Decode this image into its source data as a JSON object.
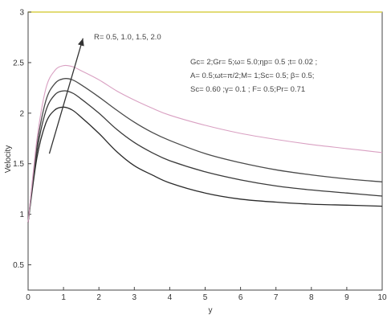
{
  "chart_data": {
    "type": "line",
    "title": "",
    "xlabel": "y",
    "ylabel": "Velocity",
    "xlim": [
      0,
      10
    ],
    "ylim": [
      0.25,
      3
    ],
    "x_ticks": [
      0,
      1,
      2,
      3,
      4,
      5,
      6,
      7,
      8,
      9,
      10
    ],
    "y_ticks": [
      0.5,
      1,
      1.5,
      2,
      2.5,
      3
    ],
    "grid": false,
    "legend": "none",
    "annotations": [
      "R= 0.5, 1.0, 1.5, 2.0",
      "Gc= 2;Gr= 5;ω= 5.0;ηp= 0.5 ;t= 0.02 ;",
      "A= 0.5;ωt=π/2;M= 1;Sc= 0.5; β= 0.5;",
      "Sc= 0.60 ;γ= 0.1 ; F= 0.5;Pr= 0.71"
    ],
    "x": [
      0,
      0.25,
      0.5,
      0.75,
      1,
      1.25,
      1.5,
      2,
      2.5,
      3,
      3.5,
      4,
      5,
      6,
      7,
      8,
      9,
      10
    ],
    "series": [
      {
        "name": "R = 0.5",
        "color": "#2a2a2a",
        "values": [
          0.92,
          1.56,
          1.9,
          2.03,
          2.06,
          2.03,
          1.96,
          1.8,
          1.62,
          1.48,
          1.39,
          1.31,
          1.21,
          1.15,
          1.12,
          1.1,
          1.09,
          1.08
        ]
      },
      {
        "name": "R = 1.0",
        "color": "#3a3a3a",
        "values": [
          0.92,
          1.62,
          2.02,
          2.18,
          2.22,
          2.2,
          2.14,
          2.0,
          1.84,
          1.71,
          1.61,
          1.53,
          1.42,
          1.34,
          1.28,
          1.24,
          1.21,
          1.18
        ]
      },
      {
        "name": "R = 1.5",
        "color": "#4a4a4a",
        "values": [
          0.92,
          1.68,
          2.12,
          2.29,
          2.34,
          2.33,
          2.28,
          2.16,
          2.03,
          1.91,
          1.81,
          1.73,
          1.6,
          1.51,
          1.44,
          1.39,
          1.35,
          1.32
        ]
      },
      {
        "name": "R = 2.0",
        "color": "#d9a0c2",
        "values": [
          0.92,
          1.74,
          2.24,
          2.42,
          2.47,
          2.46,
          2.42,
          2.33,
          2.22,
          2.13,
          2.05,
          1.98,
          1.88,
          1.8,
          1.74,
          1.69,
          1.65,
          1.61
        ]
      }
    ]
  }
}
